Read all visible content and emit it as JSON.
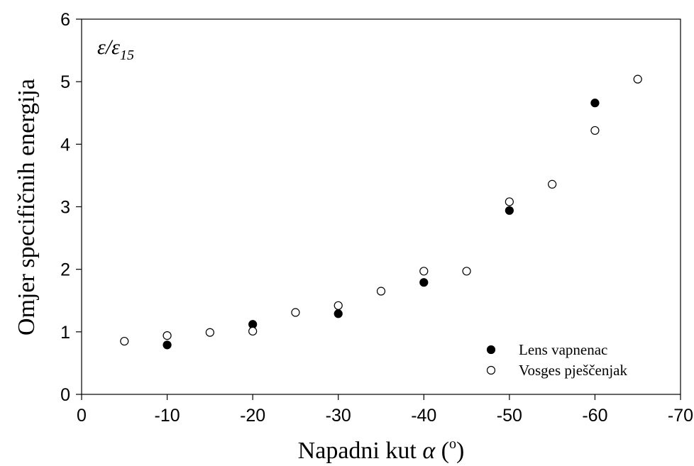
{
  "chart_data": {
    "type": "scatter",
    "xlabel_main": "Napadni kut ",
    "xlabel_symbol": "α",
    "xlabel_unit_open": " (",
    "xlabel_unit_sup": "o",
    "xlabel_unit_close": ")",
    "ylabel": "Omjer specifičnih energija",
    "annotation_main": "ε/ε",
    "annotation_sub": "15",
    "xlim": [
      0,
      -70
    ],
    "ylim": [
      0,
      6
    ],
    "x_ticks": [
      0,
      -10,
      -20,
      -30,
      -40,
      -50,
      -60,
      -70
    ],
    "x_tick_labels": [
      "0",
      "-10",
      "-20",
      "-30",
      "-40",
      "-50",
      "-60",
      "-70"
    ],
    "y_ticks": [
      0,
      1,
      2,
      3,
      4,
      5,
      6
    ],
    "y_tick_labels": [
      "0",
      "1",
      "2",
      "3",
      "4",
      "5",
      "6"
    ],
    "grid": false,
    "legend_position": "bottom-right",
    "series": [
      {
        "name": "Lens vapnenac",
        "marker": "filled-circle",
        "color": "#000000",
        "points": [
          {
            "x": -10,
            "y": 0.79
          },
          {
            "x": -20,
            "y": 1.12
          },
          {
            "x": -30,
            "y": 1.29
          },
          {
            "x": -40,
            "y": 1.79
          },
          {
            "x": -50,
            "y": 2.94
          },
          {
            "x": -60,
            "y": 4.66
          }
        ]
      },
      {
        "name": "Vosges pješčenjak",
        "marker": "open-circle",
        "color": "#000000",
        "points": [
          {
            "x": -5,
            "y": 0.85
          },
          {
            "x": -10,
            "y": 0.94
          },
          {
            "x": -15,
            "y": 0.99
          },
          {
            "x": -20,
            "y": 1.01
          },
          {
            "x": -25,
            "y": 1.31
          },
          {
            "x": -30,
            "y": 1.42
          },
          {
            "x": -35,
            "y": 1.65
          },
          {
            "x": -40,
            "y": 1.97
          },
          {
            "x": -45,
            "y": 1.97
          },
          {
            "x": -50,
            "y": 3.08
          },
          {
            "x": -55,
            "y": 3.36
          },
          {
            "x": -60,
            "y": 4.22
          },
          {
            "x": -65,
            "y": 5.04
          }
        ]
      }
    ]
  }
}
